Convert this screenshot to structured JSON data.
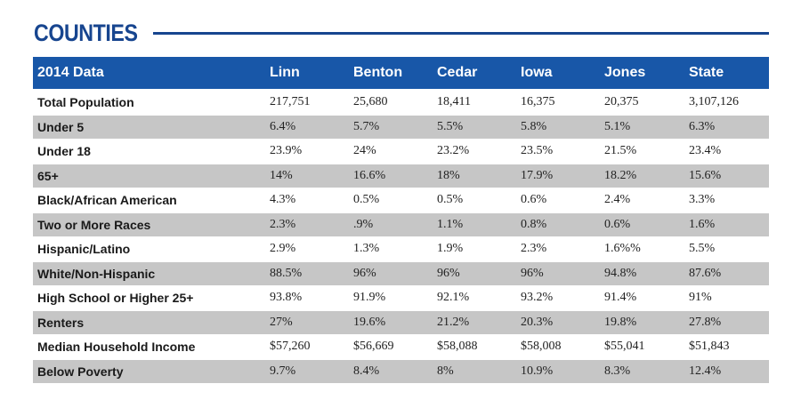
{
  "title": "COUNTIES",
  "table": {
    "headers": [
      "2014 Data",
      "Linn",
      "Benton",
      "Cedar",
      "Iowa",
      "Jones",
      "State"
    ],
    "rows": [
      [
        "Total Population",
        "217,751",
        "25,680",
        "18,411",
        "16,375",
        "20,375",
        "3,107,126"
      ],
      [
        "Under 5",
        "6.4%",
        "5.7%",
        "5.5%",
        "5.8%",
        "5.1%",
        "6.3%"
      ],
      [
        "Under 18",
        "23.9%",
        "24%",
        "23.2%",
        "23.5%",
        "21.5%",
        "23.4%"
      ],
      [
        "65+",
        "14%",
        "16.6%",
        "18%",
        "17.9%",
        "18.2%",
        "15.6%"
      ],
      [
        "Black/African American",
        "4.3%",
        "0.5%",
        "0.5%",
        "0.6%",
        "2.4%",
        "3.3%"
      ],
      [
        "Two or More Races",
        "2.3%",
        ".9%",
        "1.1%",
        "0.8%",
        "0.6%",
        "1.6%"
      ],
      [
        "Hispanic/Latino",
        "2.9%",
        "1.3%",
        "1.9%",
        "2.3%",
        "1.6%%",
        "5.5%"
      ],
      [
        "White/Non-Hispanic",
        "88.5%",
        "96%",
        "96%",
        "96%",
        "94.8%",
        "87.6%"
      ],
      [
        "High School or Higher 25+",
        "93.8%",
        "91.9%",
        "92.1%",
        "93.2%",
        "91.4%",
        "91%"
      ],
      [
        "Renters",
        "27%",
        "19.6%",
        "21.2%",
        "20.3%",
        "19.8%",
        "27.8%"
      ],
      [
        "Median Household Income",
        "$57,260",
        "$56,669",
        "$58,088",
        "$58,008",
        "$55,041",
        "$51,843"
      ],
      [
        "Below Poverty",
        "9.7%",
        "8.4%",
        "8%",
        "10.9%",
        "8.3%",
        "12.4%"
      ]
    ]
  },
  "colors": {
    "title": "#17458f",
    "header_bg": "#1857a8",
    "shaded_row": "#c6c6c6"
  }
}
